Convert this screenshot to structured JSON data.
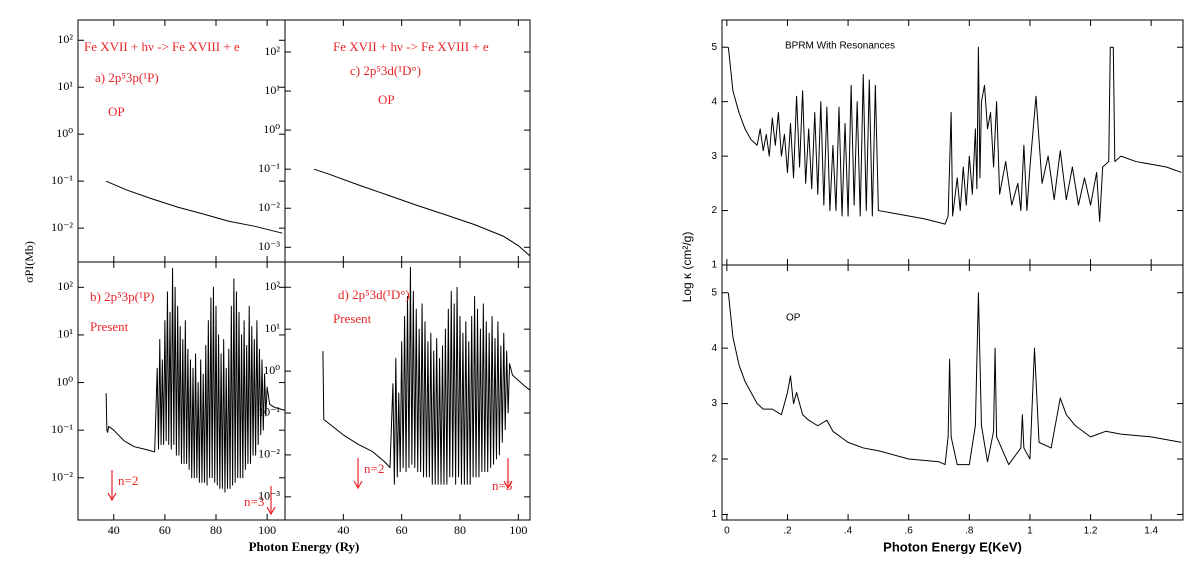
{
  "chart_data": [
    {
      "type": "line",
      "log_y": true,
      "color": "#000000",
      "annotation_color": "#e8262a",
      "ylabel": "σPI(Mb)",
      "annotations": [
        "Fe XVII + hν -> Fe XVIII + e",
        "a) 2p⁵3p(¹P)",
        "OP"
      ],
      "xlim": [
        26,
        107
      ],
      "ylim": [
        0.0019,
        270
      ],
      "yticks": [
        {
          "value": 0.01,
          "label": "10⁻²"
        },
        {
          "value": 0.1,
          "label": "10⁻¹"
        },
        {
          "value": 1,
          "label": "10⁰"
        },
        {
          "value": 10,
          "label": "10¹"
        },
        {
          "value": 100,
          "label": "10²"
        }
      ],
      "x": [
        37,
        45,
        55,
        65,
        75,
        85,
        95,
        106
      ],
      "values": [
        0.1,
        0.065,
        0.042,
        0.028,
        0.02,
        0.014,
        0.011,
        0.0078
      ]
    },
    {
      "type": "line",
      "log_y": true,
      "color": "#000000",
      "annotation_color": "#e8262a",
      "xlabel": "Photon Energy (Ry)",
      "annotations": [
        "b) 2p⁵3p(¹P)",
        "Present",
        "n=2",
        "n=3"
      ],
      "xlim": [
        26,
        107
      ],
      "ylim": [
        0.0013,
        340
      ],
      "xticks": [
        40,
        60,
        80,
        100
      ],
      "yticks": [
        {
          "value": 0.01,
          "label": "10⁻²"
        },
        {
          "value": 0.1,
          "label": "10⁻¹"
        },
        {
          "value": 1,
          "label": "10⁰"
        },
        {
          "value": 10,
          "label": "10¹"
        },
        {
          "value": 100,
          "label": "10²"
        }
      ],
      "x": [
        37,
        37.3,
        37.6,
        38,
        40,
        44,
        48,
        52,
        56,
        57,
        57.5,
        58,
        58.5,
        59,
        59.5,
        60,
        60.5,
        61,
        61.5,
        62,
        62.5,
        63,
        63.5,
        64,
        64.5,
        65,
        65.5,
        66,
        66.5,
        67,
        67.5,
        68,
        68.5,
        69,
        69.5,
        70,
        70.5,
        71,
        71.5,
        72,
        72.5,
        73,
        73.5,
        74,
        74.5,
        75,
        75.5,
        76,
        76.5,
        77,
        77.5,
        78,
        78.5,
        79,
        79.5,
        80,
        80.5,
        81,
        81.5,
        82,
        82.5,
        83,
        83.5,
        84,
        84.5,
        85,
        85.5,
        86,
        86.5,
        87,
        87.5,
        88,
        88.5,
        89,
        89.5,
        90,
        90.5,
        91,
        91.5,
        92,
        92.5,
        93,
        93.5,
        94,
        94.5,
        95,
        95.5,
        96,
        96.5,
        97,
        97.5,
        98,
        98.5,
        99,
        99.5,
        100,
        101,
        103,
        105,
        107
      ],
      "values": [
        0.6,
        0.1,
        0.09,
        0.12,
        0.1,
        0.06,
        0.045,
        0.04,
        0.035,
        2,
        0.04,
        8,
        0.05,
        3,
        0.05,
        20,
        0.06,
        80,
        0.05,
        30,
        0.04,
        250,
        0.05,
        100,
        0.03,
        40,
        0.03,
        15,
        0.02,
        8,
        0.02,
        20,
        0.02,
        5,
        0.015,
        3,
        0.01,
        2,
        0.01,
        4,
        0.01,
        1,
        0.008,
        3,
        0.008,
        1.5,
        0.008,
        6,
        0.007,
        20,
        0.01,
        60,
        0.01,
        100,
        0.008,
        40,
        0.007,
        10,
        0.006,
        4,
        0.006,
        8,
        0.005,
        2,
        0.006,
        5,
        0.006,
        40,
        0.007,
        150,
        0.008,
        80,
        0.01,
        30,
        0.01,
        10,
        0.01,
        20,
        0.015,
        6,
        0.02,
        40,
        0.02,
        15,
        0.03,
        8,
        0.03,
        20,
        0.05,
        5,
        0.08,
        3,
        0.1,
        1.5,
        0.2,
        0.8,
        0.35,
        0.3,
        0.28,
        0.26
      ]
    },
    {
      "type": "line",
      "log_y": true,
      "color": "#000000",
      "annotation_color": "#e8262a",
      "annotations": [
        "Fe XVII + hν -> Fe XVIII + e",
        "c) 2p⁵3d(¹D°)",
        "OP"
      ],
      "xlim": [
        20,
        104
      ],
      "ylim": [
        0.00042,
        660
      ],
      "yticks": [
        {
          "value": 0.001,
          "label": "10⁻³"
        },
        {
          "value": 0.01,
          "label": "10⁻²"
        },
        {
          "value": 0.1,
          "label": "10⁻¹"
        },
        {
          "value": 1,
          "label": "10⁰"
        },
        {
          "value": 10,
          "label": "10¹"
        },
        {
          "value": 100,
          "label": "10²"
        }
      ],
      "x": [
        30,
        35,
        45,
        55,
        65,
        75,
        85,
        95,
        100,
        104
      ],
      "values": [
        0.1,
        0.075,
        0.04,
        0.022,
        0.012,
        0.0068,
        0.0038,
        0.0019,
        0.0011,
        0.0006
      ]
    },
    {
      "type": "line",
      "log_y": true,
      "color": "#000000",
      "annotation_color": "#e8262a",
      "annotations": [
        "d) 2p⁵3d(¹D°)",
        "Present",
        "n=2",
        "n=3"
      ],
      "xlim": [
        20,
        104
      ],
      "ylim": [
        0.00028,
        400
      ],
      "xticks": [
        40,
        60,
        80,
        100
      ],
      "yticks": [
        {
          "value": 0.001,
          "label": "10⁻³"
        },
        {
          "value": 0.01,
          "label": "10⁻²"
        },
        {
          "value": 0.1,
          "label": "10⁻¹"
        },
        {
          "value": 1,
          "label": "10⁰"
        },
        {
          "value": 10,
          "label": "10¹"
        },
        {
          "value": 100,
          "label": "10²"
        }
      ],
      "x": [
        33,
        33.3,
        36,
        40,
        45,
        50,
        54,
        56,
        57,
        57.5,
        58,
        58.5,
        59,
        59.5,
        60,
        60.5,
        61,
        61.5,
        62,
        62.5,
        63,
        63.5,
        64,
        64.5,
        65,
        65.5,
        66,
        66.5,
        67,
        67.5,
        68,
        68.5,
        69,
        69.5,
        70,
        70.5,
        71,
        71.5,
        72,
        72.5,
        73,
        73.5,
        74,
        74.5,
        75,
        75.5,
        76,
        76.5,
        77,
        77.5,
        78,
        78.5,
        79,
        79.5,
        80,
        80.5,
        81,
        81.5,
        82,
        82.5,
        83,
        83.5,
        84,
        84.5,
        85,
        85.5,
        86,
        86.5,
        87,
        87.5,
        88,
        88.5,
        89,
        89.5,
        90,
        90.5,
        91,
        91.5,
        92,
        92.5,
        93,
        93.5,
        94,
        94.5,
        95,
        95.5,
        96,
        96.5,
        97,
        98,
        100,
        102,
        104
      ],
      "values": [
        3,
        0.07,
        0.05,
        0.03,
        0.018,
        0.012,
        0.007,
        0.005,
        0.5,
        0.002,
        2,
        0.003,
        0.3,
        0.004,
        5,
        0.005,
        20,
        0.004,
        60,
        0.005,
        300,
        0.006,
        80,
        0.005,
        30,
        0.004,
        10,
        0.004,
        40,
        0.003,
        15,
        0.003,
        5,
        0.003,
        8,
        0.002,
        3,
        0.002,
        6,
        0.002,
        2,
        0.002,
        4,
        0.002,
        10,
        0.002,
        30,
        0.003,
        80,
        0.003,
        40,
        0.002,
        100,
        0.003,
        20,
        0.002,
        8,
        0.002,
        15,
        0.002,
        5,
        0.002,
        20,
        0.003,
        60,
        0.003,
        30,
        0.003,
        10,
        0.004,
        40,
        0.004,
        15,
        0.004,
        8,
        0.005,
        20,
        0.006,
        6,
        0.008,
        15,
        0.01,
        4,
        0.02,
        8,
        0.04,
        3,
        0.1,
        1.5,
        0.8,
        0.6,
        0.45,
        0.35
      ]
    },
    {
      "type": "line",
      "log_y": false,
      "color": "#000000",
      "annotation_color": "#000000",
      "ylabel": "Log κ (cm²/g)",
      "annotations": [
        "BPRM With Resonances"
      ],
      "xlim": [
        -0.016,
        1.505
      ],
      "ylim": [
        1,
        5.5
      ],
      "yticks": [
        1,
        2,
        3,
        4,
        5
      ],
      "x": [
        0.005,
        0.02,
        0.04,
        0.06,
        0.08,
        0.1,
        0.11,
        0.12,
        0.13,
        0.14,
        0.15,
        0.16,
        0.17,
        0.18,
        0.19,
        0.2,
        0.21,
        0.22,
        0.23,
        0.24,
        0.25,
        0.26,
        0.27,
        0.28,
        0.29,
        0.3,
        0.31,
        0.32,
        0.33,
        0.34,
        0.35,
        0.36,
        0.37,
        0.38,
        0.39,
        0.4,
        0.41,
        0.42,
        0.43,
        0.44,
        0.45,
        0.46,
        0.47,
        0.48,
        0.49,
        0.5,
        0.55,
        0.6,
        0.65,
        0.7,
        0.72,
        0.73,
        0.74,
        0.745,
        0.76,
        0.77,
        0.78,
        0.79,
        0.8,
        0.81,
        0.82,
        0.825,
        0.83,
        0.835,
        0.84,
        0.85,
        0.86,
        0.87,
        0.88,
        0.89,
        0.9,
        0.92,
        0.94,
        0.96,
        0.97,
        0.98,
        0.99,
        1.0,
        1.02,
        1.04,
        1.06,
        1.08,
        1.1,
        1.12,
        1.14,
        1.16,
        1.18,
        1.2,
        1.22,
        1.23,
        1.24,
        1.26,
        1.265,
        1.275,
        1.28,
        1.3,
        1.35,
        1.4,
        1.45,
        1.5
      ],
      "values": [
        5.0,
        4.2,
        3.8,
        3.5,
        3.3,
        3.2,
        3.5,
        3.1,
        3.4,
        3.0,
        3.7,
        3.2,
        3.8,
        3.0,
        3.4,
        2.7,
        3.6,
        2.6,
        4.1,
        2.8,
        4.2,
        2.5,
        3.5,
        2.4,
        3.8,
        2.3,
        4.0,
        2.1,
        3.9,
        2.0,
        3.2,
        2.0,
        3.9,
        1.9,
        3.6,
        1.9,
        4.3,
        2.1,
        4.0,
        1.9,
        4.5,
        2.0,
        4.4,
        1.9,
        4.3,
        2.0,
        1.95,
        1.9,
        1.85,
        1.78,
        1.75,
        1.9,
        3.8,
        1.9,
        2.6,
        2.0,
        2.8,
        2.1,
        3.0,
        2.3,
        3.5,
        2.4,
        5.0,
        2.6,
        4.0,
        4.3,
        3.5,
        3.8,
        2.8,
        4.0,
        2.3,
        2.9,
        2.1,
        2.5,
        2.0,
        3.2,
        2.0,
        2.8,
        4.1,
        2.5,
        3.0,
        2.2,
        3.1,
        2.2,
        2.8,
        2.1,
        2.6,
        2.1,
        2.7,
        1.8,
        2.8,
        2.9,
        5.0,
        5.0,
        2.9,
        3.0,
        2.9,
        2.85,
        2.8,
        2.7
      ]
    },
    {
      "type": "line",
      "log_y": false,
      "color": "#000000",
      "annotation_color": "#000000",
      "xlabel": "Photon Energy E(KeV)",
      "annotations": [
        "OP"
      ],
      "xlim": [
        -0.016,
        1.505
      ],
      "ylim": [
        0.9,
        5.5
      ],
      "yticks": [
        1,
        2,
        3,
        4,
        5
      ],
      "xticks": [
        0,
        {
          "value": 0.2,
          "label": ".2"
        },
        {
          "value": 0.4,
          "label": ".4"
        },
        {
          "value": 0.6,
          "label": ".6"
        },
        {
          "value": 0.8,
          "label": ".8"
        },
        1,
        1.2,
        1.4
      ],
      "x": [
        0.005,
        0.02,
        0.04,
        0.06,
        0.08,
        0.1,
        0.12,
        0.15,
        0.18,
        0.2,
        0.21,
        0.22,
        0.23,
        0.25,
        0.27,
        0.3,
        0.33,
        0.35,
        0.4,
        0.45,
        0.5,
        0.6,
        0.7,
        0.72,
        0.73,
        0.735,
        0.74,
        0.76,
        0.8,
        0.82,
        0.83,
        0.84,
        0.86,
        0.88,
        0.885,
        0.89,
        0.93,
        0.97,
        0.975,
        0.98,
        1.0,
        1.015,
        1.03,
        1.07,
        1.1,
        1.12,
        1.15,
        1.2,
        1.25,
        1.3,
        1.4,
        1.5
      ],
      "values": [
        5.0,
        4.2,
        3.7,
        3.4,
        3.2,
        3.0,
        2.9,
        2.9,
        2.8,
        3.2,
        3.5,
        3.0,
        3.2,
        2.8,
        2.7,
        2.6,
        2.7,
        2.5,
        2.3,
        2.2,
        2.15,
        2.0,
        1.95,
        1.9,
        2.4,
        3.8,
        2.4,
        1.9,
        1.9,
        2.6,
        5.0,
        2.6,
        1.95,
        2.5,
        4.0,
        2.4,
        1.9,
        2.2,
        2.8,
        2.2,
        2.0,
        4.0,
        2.3,
        2.2,
        3.1,
        2.8,
        2.6,
        2.4,
        2.5,
        2.45,
        2.4,
        2.3
      ]
    }
  ]
}
